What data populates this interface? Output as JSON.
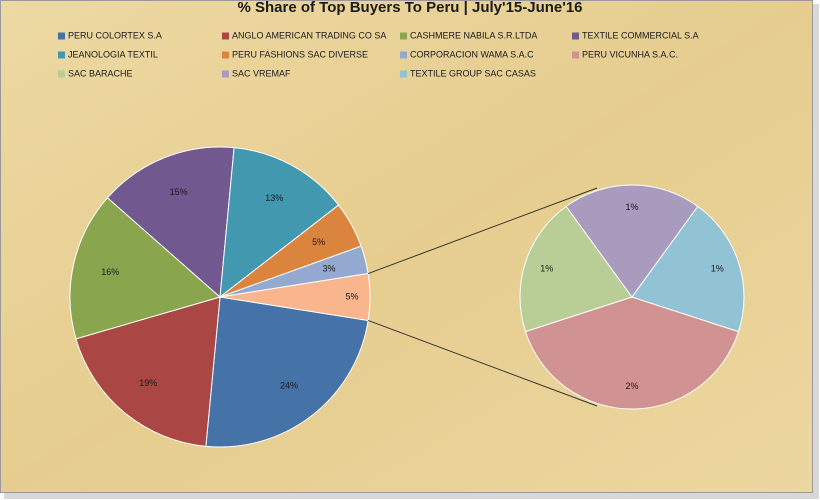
{
  "chart_data": {
    "type": "pie-of-pie",
    "title": "% Share of Top Buyers To Peru | July'15-June'16",
    "categories": [
      "PERU COLORTEX S.A",
      "ANGLO AMERICAN TRADING CO SA",
      "CASHMERE NABILA S.R.LTDA",
      "TEXTILE COMMERCIAL S.A",
      "JEANOLOGIA TEXTIL",
      "PERU FASHIONS SAC DIVERSE",
      "CORPORACION WAMA S.A.C",
      "PERU VICUNHA S.A.C.",
      "SAC BARACHE",
      "SAC VREMAF",
      "TEXTILE GROUP SAC CASAS"
    ],
    "values": [
      24,
      19,
      16,
      15,
      13,
      5,
      3,
      2,
      1,
      1,
      1
    ],
    "value_labels": [
      "24%",
      "19%",
      "16%",
      "15%",
      "13%",
      "5%",
      "3%",
      "2%",
      "1%",
      "1%",
      "1%"
    ],
    "colors": [
      "#4572a7",
      "#aa4643",
      "#89a54e",
      "#71588f",
      "#4198af",
      "#db843d",
      "#93a9cf",
      "#d19392",
      "#b9cd96",
      "#a99bbd",
      "#92c3d4"
    ],
    "secondary_from": 7,
    "other_value": 5,
    "other_value_label": "5%",
    "other_color": "#f9b58e",
    "legend": "top"
  }
}
